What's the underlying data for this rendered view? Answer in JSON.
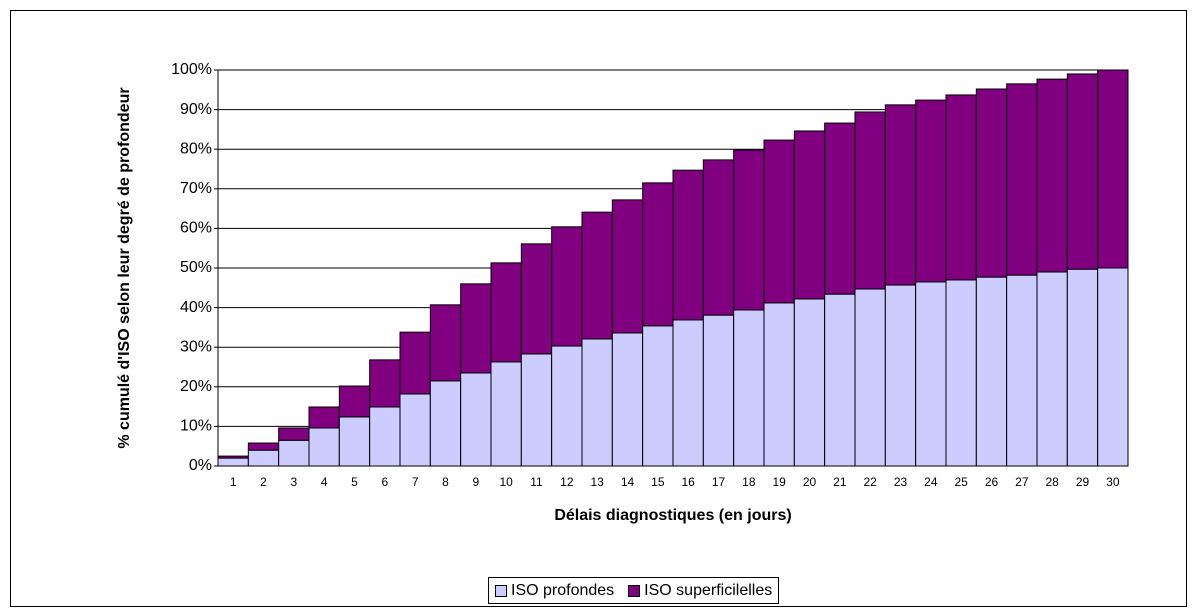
{
  "chart_data": {
    "type": "stacked-bar",
    "xlabel": "Délais diagnostiques (en jours)",
    "ylabel": "% cumulé d'ISO selon leur degré de profondeur",
    "categories": [
      "1",
      "2",
      "3",
      "4",
      "5",
      "6",
      "7",
      "8",
      "9",
      "10",
      "11",
      "12",
      "13",
      "14",
      "15",
      "16",
      "17",
      "18",
      "19",
      "20",
      "21",
      "22",
      "23",
      "24",
      "25",
      "26",
      "27",
      "28",
      "29",
      "30"
    ],
    "series": [
      {
        "name": "ISO profondes",
        "color": "#ccccff",
        "values": [
          2.0,
          4.0,
          6.5,
          9.6,
          12.4,
          14.9,
          18.2,
          21.5,
          23.5,
          26.3,
          28.3,
          30.3,
          32.1,
          33.6,
          35.4,
          36.9,
          38.1,
          39.4,
          41.2,
          42.2,
          43.4,
          44.7,
          45.7,
          46.5,
          47.0,
          47.7,
          48.2,
          49.0,
          49.7,
          50.0
        ]
      },
      {
        "name": "ISO superficilelles",
        "color": "#800080",
        "values": [
          0.5,
          1.8,
          3.1,
          5.3,
          7.8,
          11.9,
          15.6,
          19.2,
          22.5,
          25.0,
          27.8,
          30.1,
          32.0,
          33.6,
          36.1,
          37.8,
          39.2,
          40.4,
          41.1,
          42.4,
          43.2,
          44.7,
          45.5,
          45.9,
          46.7,
          47.5,
          48.3,
          48.7,
          49.3,
          50.0
        ]
      }
    ],
    "ylim": [
      0,
      100
    ],
    "yticks": [
      {
        "value": 0,
        "label": "0%"
      },
      {
        "value": 10,
        "label": "10%"
      },
      {
        "value": 20,
        "label": "20%"
      },
      {
        "value": 30,
        "label": "30%"
      },
      {
        "value": 40,
        "label": "40%"
      },
      {
        "value": 50,
        "label": "50%"
      },
      {
        "value": 60,
        "label": "60%"
      },
      {
        "value": 70,
        "label": "70%"
      },
      {
        "value": 80,
        "label": "80%"
      },
      {
        "value": 90,
        "label": "90%"
      },
      {
        "value": 100,
        "label": "100%"
      }
    ],
    "grid": true
  }
}
